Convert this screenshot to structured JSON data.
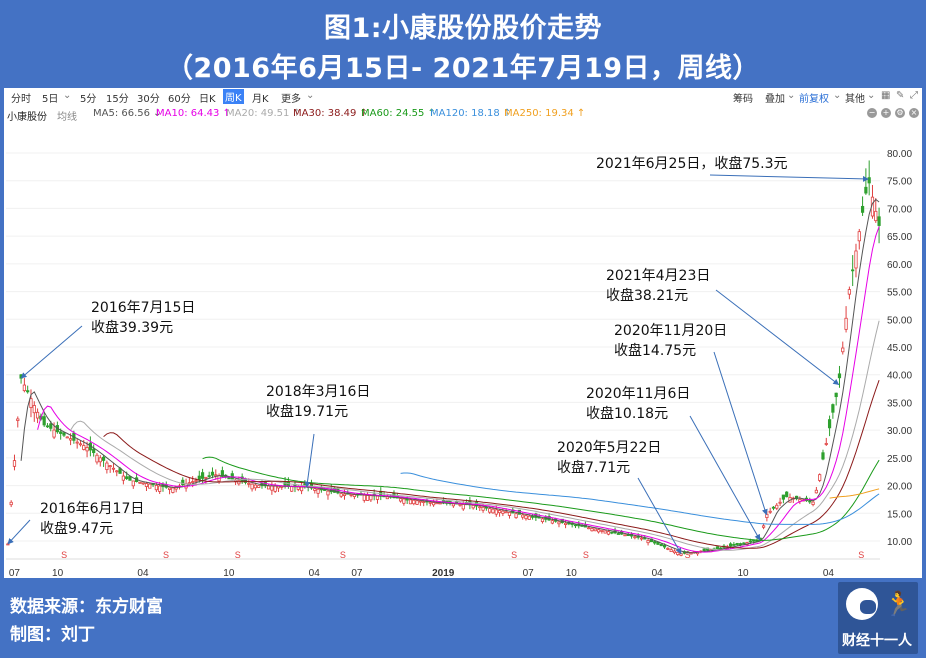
{
  "header": {
    "title": "图1:小康股份股价走势",
    "subtitle": "（2016年6月15日- 2021年7月19日，周线）"
  },
  "toolbar": {
    "periods": [
      "分时",
      "5日",
      "5分",
      "15分",
      "30分",
      "60分",
      "日K",
      "周K",
      "月K",
      "更多"
    ],
    "active": "周K",
    "right_items": [
      "筹码",
      "叠加",
      "前复权",
      "其他"
    ],
    "dropdown_icon": "chevron-down-icon"
  },
  "ma_bar": {
    "stock": "小康股份",
    "line_type": "均线",
    "items": [
      {
        "text": "MA5: 66.56 ↓",
        "color": "#555555"
      },
      {
        "text": "MA10: 64.43 ↑",
        "color": "#e600e6"
      },
      {
        "text": "MA20: 49.51 ↑",
        "color": "#aaaaaa"
      },
      {
        "text": "MA30: 38.49 ↑",
        "color": "#8b1a1a"
      },
      {
        "text": "MA60: 24.55 ↑",
        "color": "#1a9a1a"
      },
      {
        "text": "MA120: 18.18 ↑",
        "color": "#3a8fdc"
      },
      {
        "text": "MA250: 19.34 ↑",
        "color": "#f0a020"
      }
    ]
  },
  "chart_data": {
    "type": "line",
    "y_ticks": [
      "80.00",
      "75.00",
      "70.00",
      "65.00",
      "60.00",
      "55.00",
      "50.00",
      "45.00",
      "40.00",
      "35.00",
      "30.00",
      "25.00",
      "20.00",
      "15.00",
      "10.00"
    ],
    "x_ticks": [
      "07",
      "10",
      "04",
      "10",
      "04",
      "07",
      "2019",
      "07",
      "10",
      "04",
      "10",
      "04"
    ],
    "ylim": [
      6,
      84
    ],
    "series": [
      {
        "color": "#555555",
        "dates": [
          "2016-06-17",
          "2016-07-15",
          "2016-09-01",
          "2016-12-01",
          "2017-03-01",
          "2017-06-01",
          "2017-09-01",
          "2017-12-01",
          "2018-03-16",
          "2018-06-01",
          "2018-09-01",
          "2018-12-01",
          "2019-03-01",
          "2019-06-01",
          "2019-09-01",
          "2019-12-01",
          "2020-03-01",
          "2020-05-22",
          "2020-08-01",
          "2020-11-06",
          "2020-11-20",
          "2021-01-01",
          "2021-03-01",
          "2021-04-23",
          "2021-05-15",
          "2021-06-25",
          "2021-07-19"
        ],
        "values": [
          9.47,
          39.39,
          31,
          27,
          21,
          19.5,
          22,
          20,
          19.71,
          18.5,
          18,
          17,
          16.5,
          15,
          13.5,
          12,
          10.5,
          7.71,
          8.5,
          10.18,
          14.75,
          18,
          17,
          38.21,
          55,
          75.3,
          66.56
        ]
      }
    ],
    "annotations": [
      {
        "line1": "2016年6月17日",
        "line2": "收盘9.47元"
      },
      {
        "line1": "2016年7月15日",
        "line2": "收盘39.39元"
      },
      {
        "line1": "2018年3月16日",
        "line2": "收盘19.71元"
      },
      {
        "line1": "2020年5月22日",
        "line2": "收盘7.71元"
      },
      {
        "line1": "2020年11月6日",
        "line2": "收盘10.18元"
      },
      {
        "line1": "2020年11月20日",
        "line2": "收盘14.75元"
      },
      {
        "line1": "2021年4月23日",
        "line2": "收盘38.21元"
      },
      {
        "line1": "2021年6月25日，收盘75.3元",
        "line2": ""
      }
    ]
  },
  "footer": {
    "source": "数据来源：东方财富",
    "author": "制图：刘丁",
    "logo_text": "财经十一人"
  }
}
